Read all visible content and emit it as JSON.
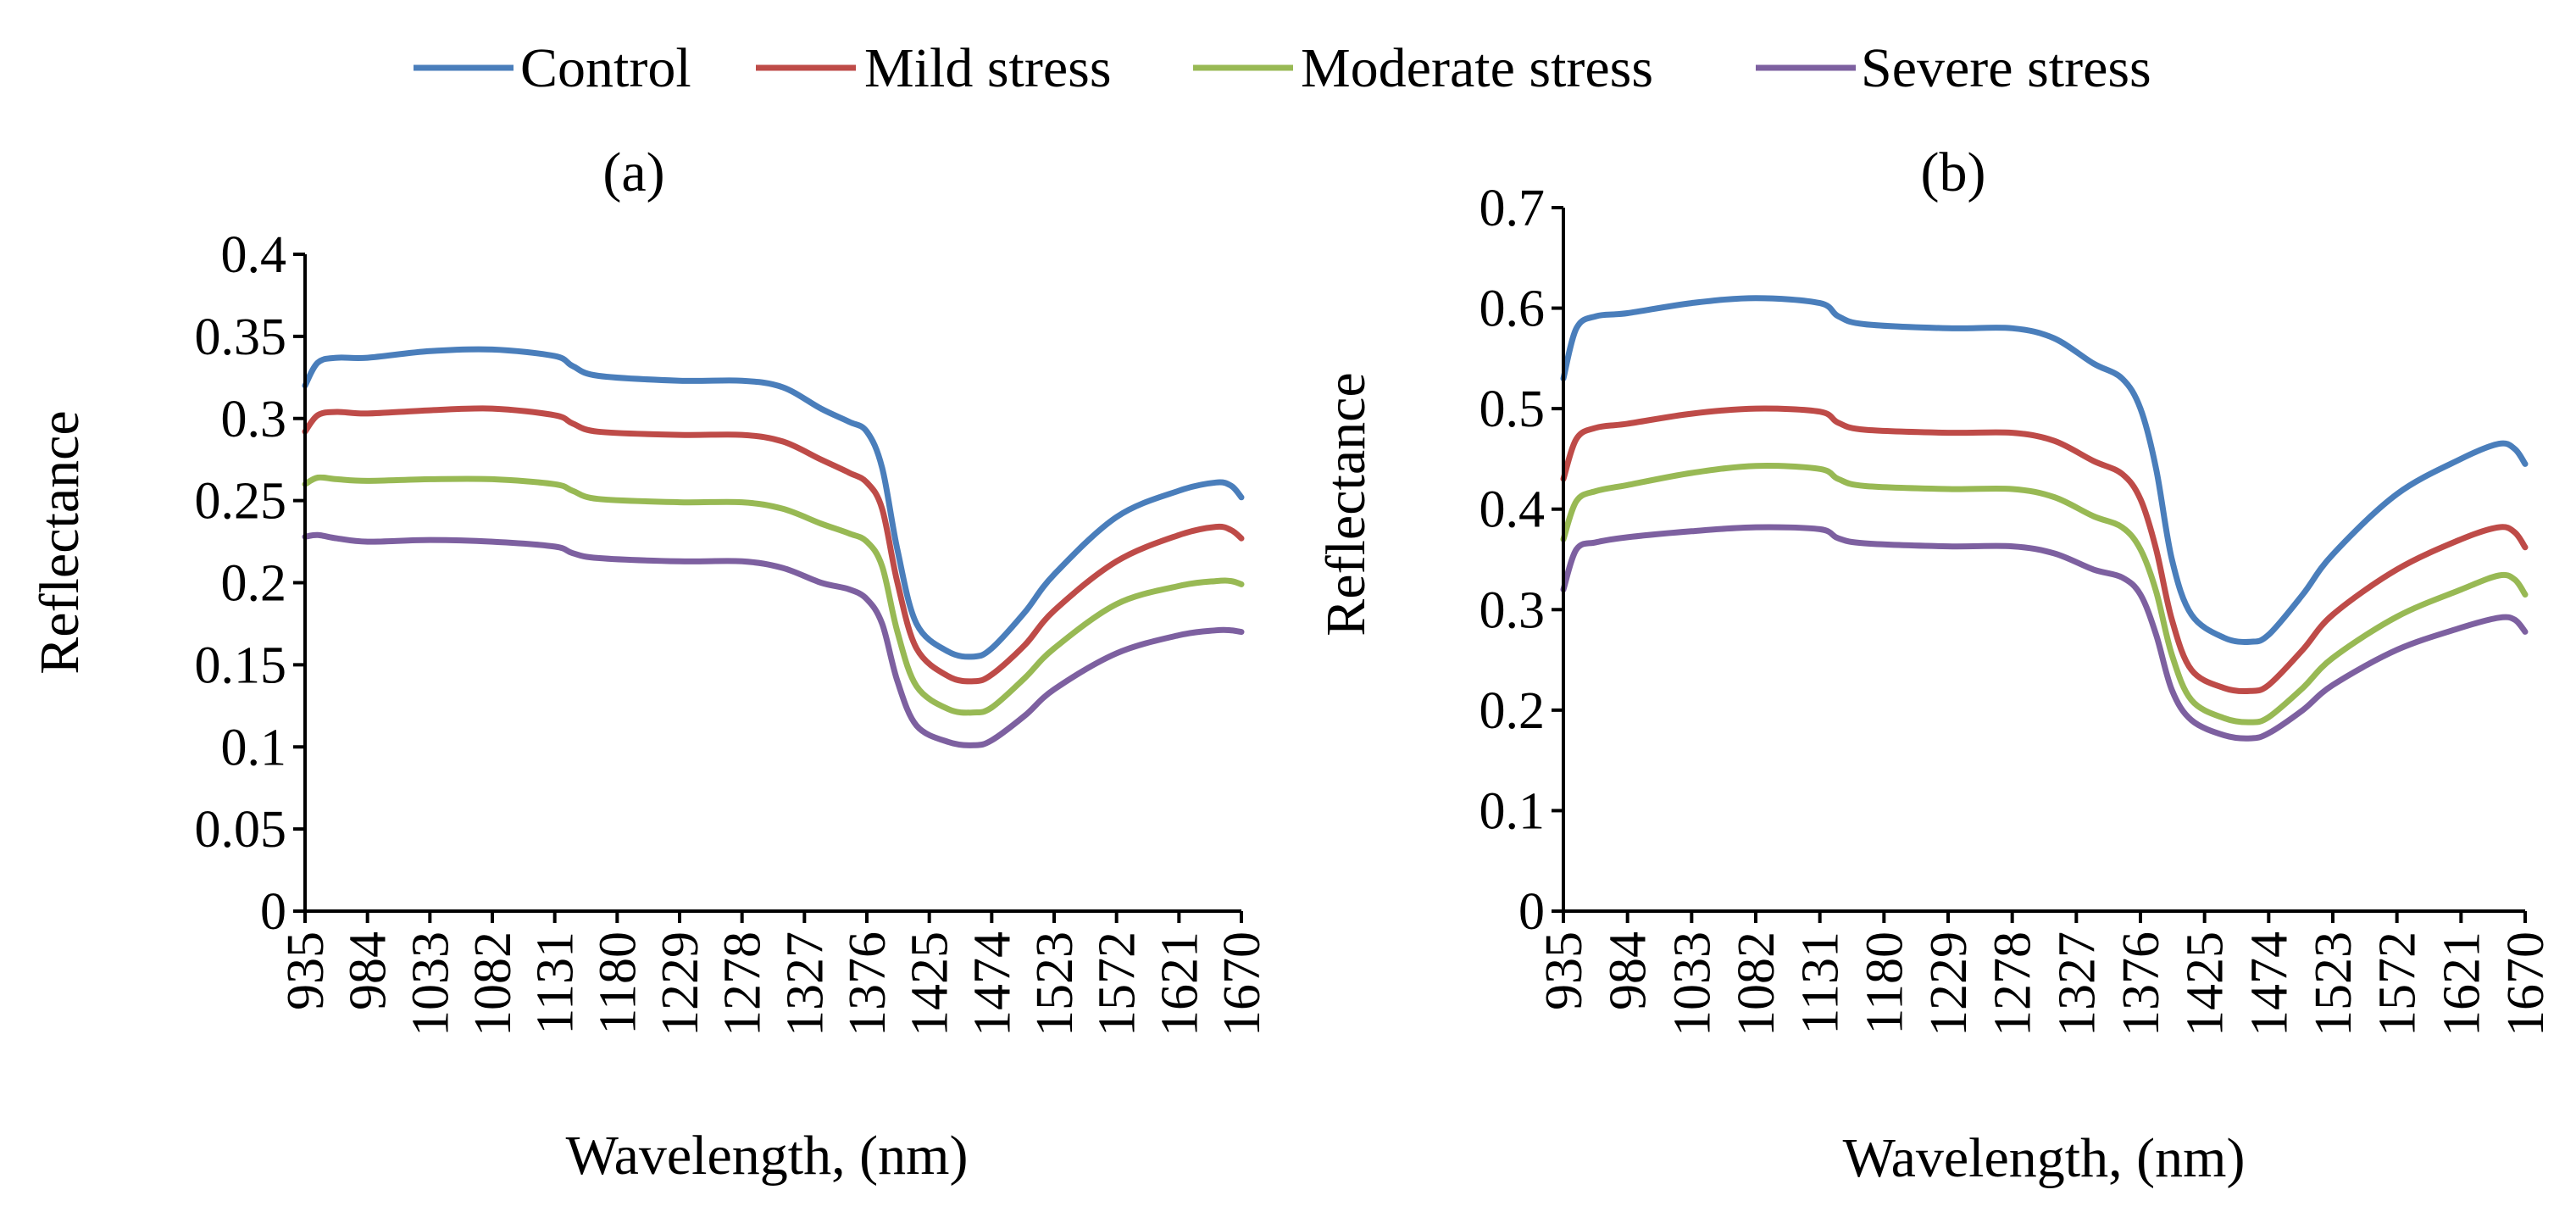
{
  "legend": [
    {
      "name": "Control",
      "color": "#4a7ebb"
    },
    {
      "name": "Mild stress",
      "color": "#be4b48"
    },
    {
      "name": "Moderate stress",
      "color": "#98b954"
    },
    {
      "name": "Severe stress",
      "color": "#7d60a0"
    }
  ],
  "chart_data": [
    {
      "type": "line",
      "panel_label": "(a)",
      "title": "",
      "xlabel": "Wavelength, (nm)",
      "ylabel": "Reflectance",
      "xlim": [
        935,
        1670
      ],
      "ylim": [
        0,
        0.4
      ],
      "x_ticks": [
        "935",
        "984",
        "1033",
        "1082",
        "1131",
        "1180",
        "1229",
        "1278",
        "1327",
        "1376",
        "1425",
        "1474",
        "1523",
        "1572",
        "1621",
        "1670"
      ],
      "y_ticks": [
        "0",
        "0.05",
        "0.1",
        "0.15",
        "0.2",
        "0.25",
        "0.3",
        "0.35",
        "0.4"
      ],
      "grid": false,
      "legend_position": "top",
      "x": [
        935,
        945,
        960,
        984,
        1033,
        1082,
        1131,
        1145,
        1165,
        1229,
        1278,
        1310,
        1340,
        1362,
        1376,
        1388,
        1400,
        1415,
        1440,
        1460,
        1474,
        1500,
        1523,
        1572,
        1621,
        1650,
        1662,
        1670
      ],
      "series": [
        {
          "name": "Control",
          "color": "#4a7ebb",
          "values": [
            0.32,
            0.334,
            0.337,
            0.337,
            0.341,
            0.342,
            0.338,
            0.332,
            0.326,
            0.323,
            0.323,
            0.319,
            0.306,
            0.298,
            0.292,
            0.27,
            0.22,
            0.175,
            0.158,
            0.155,
            0.16,
            0.182,
            0.205,
            0.24,
            0.256,
            0.261,
            0.259,
            0.252
          ]
        },
        {
          "name": "Mild stress",
          "color": "#be4b48",
          "values": [
            0.292,
            0.302,
            0.304,
            0.303,
            0.305,
            0.306,
            0.302,
            0.297,
            0.292,
            0.29,
            0.29,
            0.286,
            0.275,
            0.267,
            0.261,
            0.245,
            0.2,
            0.16,
            0.143,
            0.14,
            0.144,
            0.162,
            0.183,
            0.213,
            0.229,
            0.234,
            0.232,
            0.227
          ]
        },
        {
          "name": "Moderate stress",
          "color": "#98b954",
          "values": [
            0.26,
            0.264,
            0.263,
            0.262,
            0.263,
            0.263,
            0.26,
            0.256,
            0.251,
            0.249,
            0.249,
            0.245,
            0.236,
            0.23,
            0.225,
            0.21,
            0.17,
            0.137,
            0.123,
            0.121,
            0.124,
            0.142,
            0.16,
            0.187,
            0.198,
            0.201,
            0.201,
            0.199
          ]
        },
        {
          "name": "Severe stress",
          "color": "#7d60a0",
          "values": [
            0.228,
            0.229,
            0.227,
            0.225,
            0.226,
            0.225,
            0.222,
            0.218,
            0.215,
            0.213,
            0.213,
            0.209,
            0.2,
            0.196,
            0.19,
            0.175,
            0.14,
            0.113,
            0.103,
            0.101,
            0.104,
            0.119,
            0.135,
            0.157,
            0.168,
            0.171,
            0.171,
            0.17
          ]
        }
      ]
    },
    {
      "type": "line",
      "panel_label": "(b)",
      "title": "",
      "xlabel": "Wavelength, (nm)",
      "ylabel": "Reflectance",
      "xlim": [
        935,
        1670
      ],
      "ylim": [
        0,
        0.7
      ],
      "x_ticks": [
        "935",
        "984",
        "1033",
        "1082",
        "1131",
        "1180",
        "1229",
        "1278",
        "1327",
        "1376",
        "1425",
        "1474",
        "1523",
        "1572",
        "1621",
        "1670"
      ],
      "y_ticks": [
        "0",
        "0.1",
        "0.2",
        "0.3",
        "0.4",
        "0.5",
        "0.6",
        "0.7"
      ],
      "grid": false,
      "legend_position": "top",
      "x": [
        935,
        945,
        960,
        984,
        1033,
        1082,
        1131,
        1145,
        1165,
        1229,
        1278,
        1310,
        1340,
        1362,
        1376,
        1388,
        1400,
        1415,
        1440,
        1460,
        1474,
        1500,
        1523,
        1572,
        1621,
        1650,
        1662,
        1670
      ],
      "series": [
        {
          "name": "Control",
          "color": "#4a7ebb",
          "values": [
            0.53,
            0.58,
            0.592,
            0.595,
            0.605,
            0.61,
            0.605,
            0.592,
            0.584,
            0.58,
            0.58,
            0.57,
            0.545,
            0.53,
            0.5,
            0.44,
            0.35,
            0.295,
            0.272,
            0.268,
            0.275,
            0.315,
            0.355,
            0.415,
            0.45,
            0.465,
            0.46,
            0.445
          ]
        },
        {
          "name": "Mild stress",
          "color": "#be4b48",
          "values": [
            0.43,
            0.47,
            0.481,
            0.485,
            0.495,
            0.5,
            0.497,
            0.486,
            0.479,
            0.476,
            0.476,
            0.468,
            0.448,
            0.435,
            0.41,
            0.36,
            0.29,
            0.24,
            0.222,
            0.219,
            0.225,
            0.26,
            0.295,
            0.34,
            0.37,
            0.382,
            0.377,
            0.362
          ]
        },
        {
          "name": "Moderate stress",
          "color": "#98b954",
          "values": [
            0.37,
            0.408,
            0.418,
            0.424,
            0.436,
            0.443,
            0.44,
            0.43,
            0.423,
            0.42,
            0.42,
            0.412,
            0.393,
            0.382,
            0.36,
            0.318,
            0.255,
            0.21,
            0.192,
            0.188,
            0.193,
            0.222,
            0.252,
            0.293,
            0.32,
            0.334,
            0.33,
            0.315
          ]
        },
        {
          "name": "Severe stress",
          "color": "#7d60a0",
          "values": [
            0.32,
            0.36,
            0.367,
            0.372,
            0.378,
            0.382,
            0.38,
            0.371,
            0.366,
            0.363,
            0.363,
            0.356,
            0.34,
            0.332,
            0.315,
            0.275,
            0.22,
            0.19,
            0.175,
            0.172,
            0.177,
            0.2,
            0.225,
            0.26,
            0.282,
            0.292,
            0.29,
            0.278
          ]
        }
      ]
    }
  ]
}
